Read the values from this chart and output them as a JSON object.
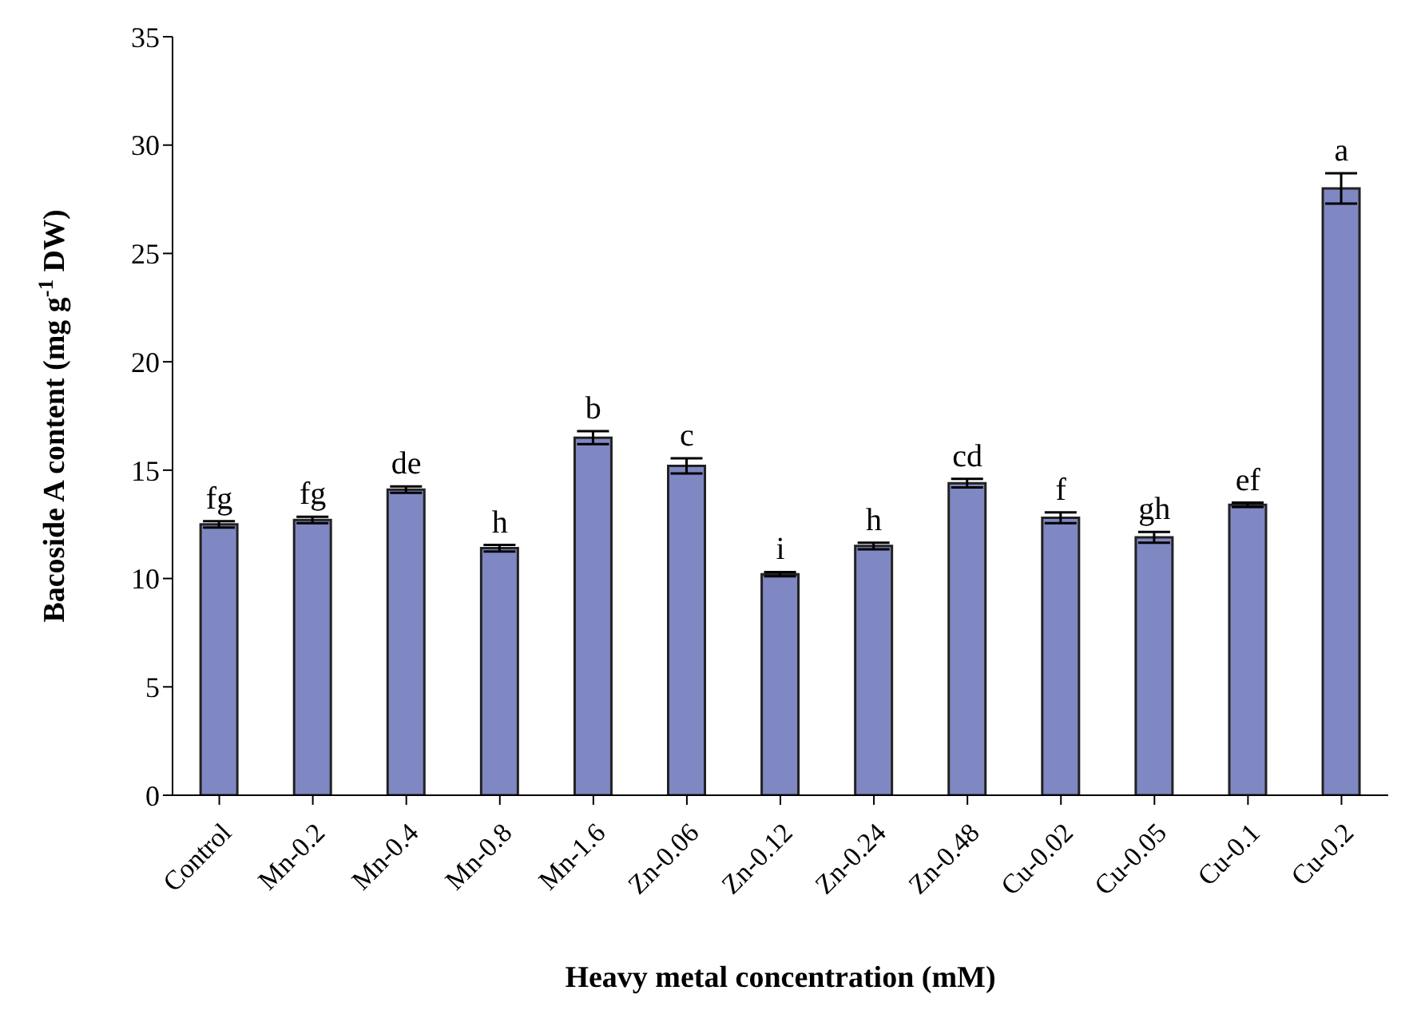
{
  "chart_data": {
    "type": "bar",
    "xlabel": "Heavy metal concentration (mM)",
    "ylabel": "Bacoside A content (mg g$^{-1}$ DW)",
    "categories": [
      "Control",
      "Mn-0.2",
      "Mn-0.4",
      "Mn-0.8",
      "Mn-1.6",
      "Zn-0.06",
      "Zn-0.12",
      "Zn-0.24",
      "Zn-0.48",
      "Cu-0.02",
      "Cu-0.05",
      "Cu-0.1",
      "Cu-0.2"
    ],
    "values": [
      12.5,
      12.7,
      14.1,
      11.4,
      16.5,
      15.2,
      10.2,
      11.5,
      14.4,
      12.8,
      11.9,
      13.4,
      28.0
    ],
    "errors": [
      0.15,
      0.15,
      0.15,
      0.15,
      0.3,
      0.35,
      0.1,
      0.15,
      0.2,
      0.25,
      0.25,
      0.1,
      0.7
    ],
    "color": "#7f88c2",
    "ylim": [
      0,
      35
    ],
    "yticks": [
      0,
      5,
      10,
      15,
      20,
      25,
      30,
      35
    ],
    "grid": false,
    "legend": false,
    "annotations": [
      {
        "text": "fg",
        "x": "Control",
        "y": 12.65
      },
      {
        "text": "fg",
        "x": "Mn-0.2",
        "y": 12.85
      },
      {
        "text": "de",
        "x": "Mn-0.4",
        "y": 14.25
      },
      {
        "text": "h",
        "x": "Mn-0.8",
        "y": 11.55
      },
      {
        "text": "b",
        "x": "Mn-1.6",
        "y": 16.8
      },
      {
        "text": "c",
        "x": "Zn-0.06",
        "y": 15.55
      },
      {
        "text": "i",
        "x": "Zn-0.12",
        "y": 10.3
      },
      {
        "text": "h",
        "x": "Zn-0.24",
        "y": 11.65
      },
      {
        "text": "cd",
        "x": "Zn-0.48",
        "y": 14.6
      },
      {
        "text": "f",
        "x": "Cu-0.02",
        "y": 13.05
      },
      {
        "text": "gh",
        "x": "Cu-0.05",
        "y": 12.15
      },
      {
        "text": "ef",
        "x": "Cu-0.1",
        "y": 13.5
      },
      {
        "text": "a",
        "x": "Cu-0.2",
        "y": 28.7
      }
    ]
  }
}
